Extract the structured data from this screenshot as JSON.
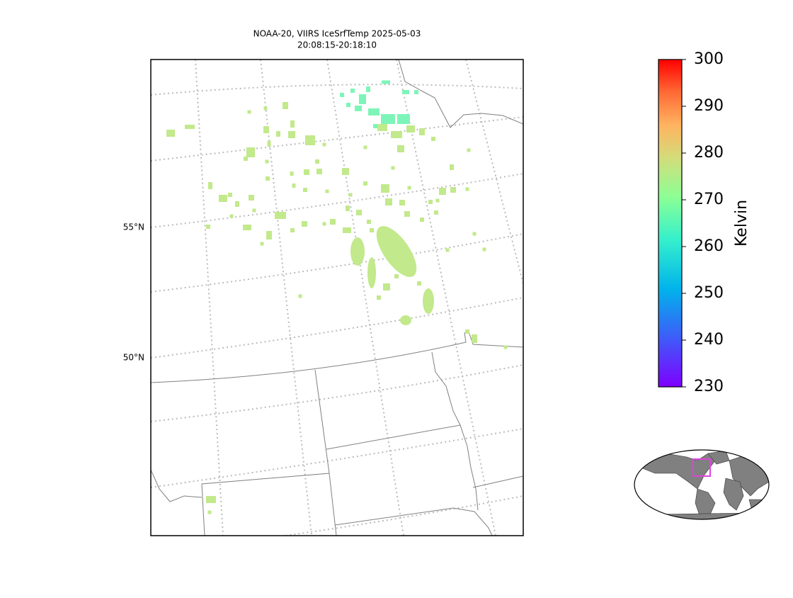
{
  "title": [
    "NOAA-20, VIIRS IceSrfTemp 2025-05-03",
    "20:08:15-20:18:10"
  ],
  "latitude_labels": [
    "55°N",
    "50°N"
  ],
  "colorbar": {
    "label": "Kelvin",
    "lim": [
      230,
      300
    ],
    "ticks": [
      230,
      240,
      250,
      260,
      270,
      280,
      290,
      300
    ]
  }
}
